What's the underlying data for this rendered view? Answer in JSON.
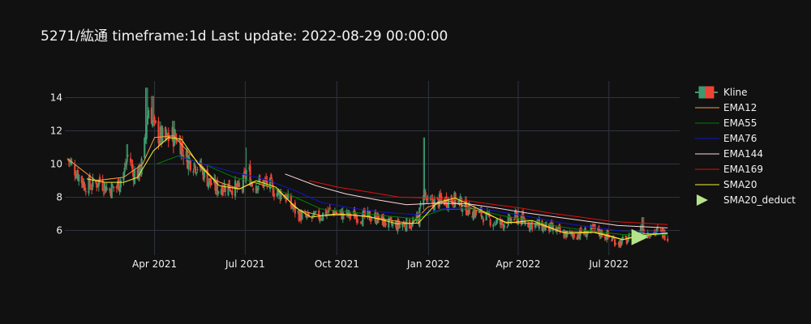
{
  "chart_data": {
    "type": "candlestick",
    "title": "5271/紘通 timeframe:1d Last update: 2022-08-29 00:00:00",
    "xlabel": "",
    "ylabel": "",
    "x_range": [
      "2021-01-01",
      "2022-09-10"
    ],
    "ylim": [
      5.0,
      15.0
    ],
    "y_ticks": [
      6,
      8,
      10,
      12,
      14
    ],
    "x_ticks": [
      {
        "date": "2021-04-01",
        "label": "Apr 2021"
      },
      {
        "date": "2021-07-01",
        "label": "Jul 2021"
      },
      {
        "date": "2021-10-01",
        "label": "Oct 2021"
      },
      {
        "date": "2022-01-01",
        "label": "Jan 2022"
      },
      {
        "date": "2022-04-01",
        "label": "Apr 2022"
      },
      {
        "date": "2022-07-01",
        "label": "Jul 2022"
      }
    ],
    "grid": true,
    "legend_position": "right",
    "colors": {
      "background": "#111111",
      "grid": "#2e3440",
      "up": "#3d9970",
      "down": "#ef4433",
      "EMA12": "#ff9a3c",
      "EMA55": "#008000",
      "EMA76": "#1515c8",
      "EMA144": "#ffd6dc",
      "EMA169": "#e01010",
      "SMA20": "#f2f230",
      "SMA20_deduct": "#b5e38a"
    },
    "legend": [
      {
        "name": "Kline",
        "kind": "candle"
      },
      {
        "name": "EMA12",
        "kind": "line"
      },
      {
        "name": "EMA55",
        "kind": "line"
      },
      {
        "name": "EMA76",
        "kind": "line"
      },
      {
        "name": "EMA144",
        "kind": "line"
      },
      {
        "name": "EMA169",
        "kind": "line"
      },
      {
        "name": "SMA20",
        "kind": "line"
      },
      {
        "name": "SMA20_deduct",
        "kind": "triangle"
      }
    ],
    "close_path": [
      [
        "2021-01-04",
        10.3
      ],
      [
        "2021-01-12",
        9.6
      ],
      [
        "2021-01-20",
        8.8
      ],
      [
        "2021-01-28",
        8.7
      ],
      [
        "2021-02-05",
        9.0
      ],
      [
        "2021-02-13",
        8.5
      ],
      [
        "2021-02-22",
        8.6
      ],
      [
        "2021-03-02",
        9.6
      ],
      [
        "2021-03-06",
        10.8
      ],
      [
        "2021-03-10",
        9.5
      ],
      [
        "2021-03-16",
        9.4
      ],
      [
        "2021-03-21",
        10.3
      ],
      [
        "2021-03-24",
        12.6
      ],
      [
        "2021-03-27",
        13.8
      ],
      [
        "2021-03-31",
        12.2
      ],
      [
        "2021-04-06",
        11.7
      ],
      [
        "2021-04-12",
        11.4
      ],
      [
        "2021-04-18",
        11.7
      ],
      [
        "2021-04-25",
        11.6
      ],
      [
        "2021-05-02",
        10.4
      ],
      [
        "2021-05-10",
        10.1
      ],
      [
        "2021-05-18",
        9.7
      ],
      [
        "2021-05-26",
        8.9
      ],
      [
        "2021-06-03",
        8.5
      ],
      [
        "2021-06-11",
        8.7
      ],
      [
        "2021-06-19",
        8.6
      ],
      [
        "2021-06-27",
        8.4
      ],
      [
        "2021-07-03",
        9.8
      ],
      [
        "2021-07-08",
        8.8
      ],
      [
        "2021-07-16",
        8.9
      ],
      [
        "2021-07-24",
        8.8
      ],
      [
        "2021-08-01",
        8.3
      ],
      [
        "2021-08-09",
        8.2
      ],
      [
        "2021-08-17",
        7.4
      ],
      [
        "2021-08-25",
        6.9
      ],
      [
        "2021-09-02",
        6.7
      ],
      [
        "2021-09-10",
        6.8
      ],
      [
        "2021-09-18",
        7.0
      ],
      [
        "2021-09-26",
        7.2
      ],
      [
        "2021-10-04",
        7.0
      ],
      [
        "2021-10-12",
        6.9
      ],
      [
        "2021-10-20",
        6.9
      ],
      [
        "2021-10-28",
        6.8
      ],
      [
        "2021-11-05",
        6.8
      ],
      [
        "2021-11-13",
        6.7
      ],
      [
        "2021-11-21",
        6.4
      ],
      [
        "2021-11-29",
        6.3
      ],
      [
        "2021-12-07",
        6.4
      ],
      [
        "2021-12-15",
        6.4
      ],
      [
        "2021-12-22",
        6.7
      ],
      [
        "2021-12-27",
        8.5
      ],
      [
        "2021-12-31",
        7.6
      ],
      [
        "2022-01-08",
        7.7
      ],
      [
        "2022-01-16",
        7.8
      ],
      [
        "2022-01-24",
        7.9
      ],
      [
        "2022-02-01",
        7.7
      ],
      [
        "2022-02-09",
        7.3
      ],
      [
        "2022-02-17",
        7.1
      ],
      [
        "2022-02-25",
        6.9
      ],
      [
        "2022-03-05",
        6.6
      ],
      [
        "2022-03-13",
        6.4
      ],
      [
        "2022-03-21",
        6.5
      ],
      [
        "2022-03-29",
        6.8
      ],
      [
        "2022-04-06",
        6.6
      ],
      [
        "2022-04-14",
        6.4
      ],
      [
        "2022-04-22",
        6.3
      ],
      [
        "2022-04-30",
        6.2
      ],
      [
        "2022-05-08",
        6.0
      ],
      [
        "2022-05-16",
        5.8
      ],
      [
        "2022-05-24",
        5.7
      ],
      [
        "2022-06-01",
        5.8
      ],
      [
        "2022-06-09",
        5.9
      ],
      [
        "2022-06-17",
        6.0
      ],
      [
        "2022-06-25",
        5.8
      ],
      [
        "2022-07-03",
        5.5
      ],
      [
        "2022-07-11",
        5.3
      ],
      [
        "2022-07-19",
        5.4
      ],
      [
        "2022-07-27",
        5.6
      ],
      [
        "2022-08-02",
        6.1
      ],
      [
        "2022-08-09",
        5.9
      ],
      [
        "2022-08-17",
        5.9
      ],
      [
        "2022-08-25",
        5.8
      ],
      [
        "2022-08-29",
        5.7
      ]
    ],
    "spikes": [
      {
        "date": "2021-03-24",
        "high": 14.6
      },
      {
        "date": "2021-03-30",
        "high": 14.1
      },
      {
        "date": "2021-04-20",
        "high": 12.6
      },
      {
        "date": "2021-03-05",
        "high": 11.2
      },
      {
        "date": "2021-07-03",
        "high": 11.0
      },
      {
        "date": "2021-12-27",
        "high": 11.6
      },
      {
        "date": "2022-08-04",
        "high": 6.8
      },
      {
        "date": "2022-04-02",
        "high": 7.4
      }
    ],
    "series": [
      {
        "name": "EMA12",
        "values": [
          [
            "2021-01-04",
            10.3
          ],
          [
            "2021-02-01",
            9.0
          ],
          [
            "2021-03-01",
            9.2
          ],
          [
            "2021-03-20",
            10.0
          ],
          [
            "2021-04-01",
            11.6
          ],
          [
            "2021-04-20",
            11.7
          ],
          [
            "2021-05-10",
            10.4
          ],
          [
            "2021-06-01",
            9.0
          ],
          [
            "2021-06-25",
            8.5
          ],
          [
            "2021-07-10",
            8.9
          ],
          [
            "2021-08-01",
            8.5
          ],
          [
            "2021-08-25",
            7.2
          ],
          [
            "2021-09-15",
            6.9
          ],
          [
            "2021-10-15",
            6.95
          ],
          [
            "2021-11-15",
            6.7
          ],
          [
            "2021-12-15",
            6.4
          ],
          [
            "2021-12-31",
            7.4
          ],
          [
            "2022-01-20",
            7.8
          ],
          [
            "2022-02-20",
            7.2
          ],
          [
            "2022-03-20",
            6.5
          ],
          [
            "2022-04-20",
            6.4
          ],
          [
            "2022-05-20",
            5.8
          ],
          [
            "2022-06-20",
            5.9
          ],
          [
            "2022-07-15",
            5.45
          ],
          [
            "2022-08-05",
            5.8
          ],
          [
            "2022-08-29",
            5.8
          ]
        ]
      },
      {
        "name": "EMA55",
        "values": [
          [
            "2021-04-03",
            10.0
          ],
          [
            "2021-04-25",
            10.5
          ],
          [
            "2021-05-20",
            10.0
          ],
          [
            "2021-06-20",
            9.2
          ],
          [
            "2021-07-20",
            8.8
          ],
          [
            "2021-08-20",
            8.0
          ],
          [
            "2021-09-15",
            7.3
          ],
          [
            "2021-10-15",
            7.1
          ],
          [
            "2021-11-15",
            6.9
          ],
          [
            "2021-12-20",
            6.7
          ],
          [
            "2022-01-15",
            7.25
          ],
          [
            "2022-02-15",
            7.3
          ],
          [
            "2022-03-15",
            6.9
          ],
          [
            "2022-04-15",
            6.6
          ],
          [
            "2022-05-15",
            6.2
          ],
          [
            "2022-06-15",
            5.95
          ],
          [
            "2022-07-15",
            5.75
          ],
          [
            "2022-08-29",
            5.75
          ]
        ]
      },
      {
        "name": "EMA76",
        "values": [
          [
            "2021-04-23",
            10.5
          ],
          [
            "2021-05-20",
            10.0
          ],
          [
            "2021-06-20",
            9.5
          ],
          [
            "2021-07-20",
            9.1
          ],
          [
            "2021-08-20",
            8.4
          ],
          [
            "2021-09-15",
            7.7
          ],
          [
            "2021-10-15",
            7.35
          ],
          [
            "2021-11-15",
            7.1
          ],
          [
            "2021-12-20",
            6.95
          ],
          [
            "2022-01-15",
            7.3
          ],
          [
            "2022-02-15",
            7.4
          ],
          [
            "2022-03-15",
            7.1
          ],
          [
            "2022-04-15",
            6.8
          ],
          [
            "2022-05-15",
            6.45
          ],
          [
            "2022-06-15",
            6.2
          ],
          [
            "2022-07-15",
            5.95
          ],
          [
            "2022-08-29",
            5.9
          ]
        ]
      },
      {
        "name": "EMA144",
        "values": [
          [
            "2021-08-10",
            9.4
          ],
          [
            "2021-09-10",
            8.7
          ],
          [
            "2021-10-10",
            8.2
          ],
          [
            "2021-11-10",
            7.85
          ],
          [
            "2021-12-10",
            7.55
          ],
          [
            "2022-01-10",
            7.65
          ],
          [
            "2022-02-10",
            7.6
          ],
          [
            "2022-03-10",
            7.35
          ],
          [
            "2022-04-10",
            7.05
          ],
          [
            "2022-05-10",
            6.8
          ],
          [
            "2022-06-10",
            6.55
          ],
          [
            "2022-07-10",
            6.3
          ],
          [
            "2022-08-29",
            6.15
          ]
        ]
      },
      {
        "name": "EMA169",
        "values": [
          [
            "2021-09-03",
            9.0
          ],
          [
            "2021-10-03",
            8.6
          ],
          [
            "2021-11-03",
            8.3
          ],
          [
            "2021-12-03",
            8.0
          ],
          [
            "2022-01-03",
            7.95
          ],
          [
            "2022-02-03",
            7.85
          ],
          [
            "2022-03-03",
            7.6
          ],
          [
            "2022-04-03",
            7.35
          ],
          [
            "2022-05-03",
            7.05
          ],
          [
            "2022-06-03",
            6.8
          ],
          [
            "2022-07-03",
            6.55
          ],
          [
            "2022-08-29",
            6.35
          ]
        ]
      },
      {
        "name": "SMA20",
        "values": [
          [
            "2021-01-23",
            9.1
          ],
          [
            "2021-02-10",
            8.9
          ],
          [
            "2021-03-01",
            8.9
          ],
          [
            "2021-03-15",
            9.2
          ],
          [
            "2021-03-31",
            10.8
          ],
          [
            "2021-04-15",
            11.6
          ],
          [
            "2021-04-28",
            11.5
          ],
          [
            "2021-05-15",
            10.0
          ],
          [
            "2021-06-05",
            8.7
          ],
          [
            "2021-06-25",
            8.5
          ],
          [
            "2021-07-12",
            9.0
          ],
          [
            "2021-08-01",
            8.6
          ],
          [
            "2021-08-20",
            7.4
          ],
          [
            "2021-09-05",
            6.8
          ],
          [
            "2021-10-01",
            7.0
          ],
          [
            "2021-11-01",
            6.85
          ],
          [
            "2021-12-01",
            6.4
          ],
          [
            "2021-12-22",
            6.45
          ],
          [
            "2022-01-10",
            7.7
          ],
          [
            "2022-01-28",
            7.95
          ],
          [
            "2022-02-20",
            7.3
          ],
          [
            "2022-03-20",
            6.45
          ],
          [
            "2022-04-15",
            6.6
          ],
          [
            "2022-05-15",
            5.9
          ],
          [
            "2022-06-15",
            5.9
          ],
          [
            "2022-07-15",
            5.45
          ],
          [
            "2022-08-05",
            5.7
          ],
          [
            "2022-08-29",
            5.85
          ]
        ]
      }
    ],
    "SMA20_deduct": {
      "date": "2022-07-31",
      "value": 5.6
    }
  }
}
